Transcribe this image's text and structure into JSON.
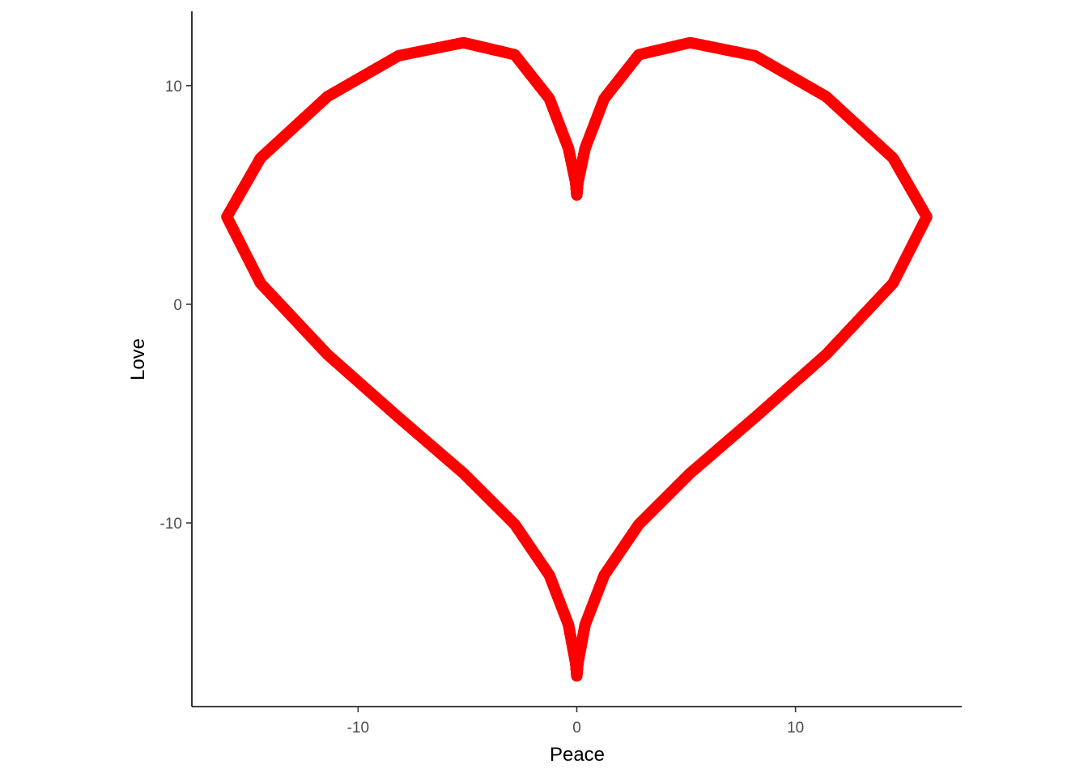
{
  "chart_data": {
    "type": "scatter",
    "title": "",
    "xlabel": "Peace",
    "ylabel": "Love",
    "xlim": [
      -17.6,
      17.6
    ],
    "ylim": [
      -18.4,
      13.4
    ],
    "x_ticks": [
      -10,
      0,
      10
    ],
    "y_ticks": [
      10,
      0,
      -10
    ],
    "x_tick_labels": [
      "-10",
      "0",
      "10"
    ],
    "y_tick_labels": [
      "10",
      "0",
      "-10"
    ],
    "grid": false,
    "legend": "none",
    "point_color": "#ff0000",
    "series": [
      {
        "x": [
          0.0,
          0.048,
          0.382,
          1.253,
          2.837,
          5.182,
          8.15,
          11.405,
          14.461,
          16.0,
          14.461,
          11.405,
          8.15,
          5.182,
          2.837,
          1.253,
          0.382,
          0.048,
          0.0,
          -0.048,
          -0.382,
          -1.253,
          -2.837,
          -5.182,
          -8.15,
          -11.405,
          -14.461,
          -16.0,
          -14.461,
          -11.405,
          -8.15,
          -5.182,
          -2.837,
          -1.253,
          -0.382,
          -0.048,
          0.0
        ],
        "y": [
          5.0,
          5.558,
          7.137,
          9.408,
          11.417,
          11.967,
          11.367,
          9.498,
          6.688,
          4.0,
          0.963,
          -2.292,
          -5.173,
          -7.728,
          -10.065,
          -12.393,
          -14.65,
          -16.43,
          -17.0,
          -16.43,
          -14.65,
          -12.393,
          -10.065,
          -7.728,
          -5.173,
          -2.292,
          0.963,
          4.0,
          6.688,
          9.498,
          11.367,
          11.967,
          11.417,
          9.408,
          7.137,
          5.558,
          5.0
        ]
      }
    ]
  }
}
